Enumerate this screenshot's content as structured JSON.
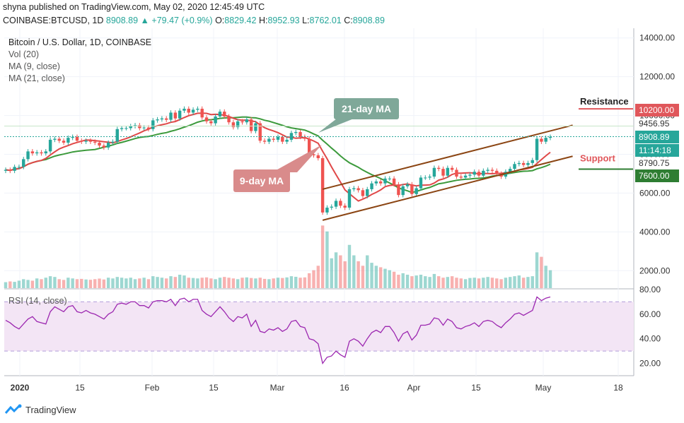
{
  "header": {
    "publisher": "shyna published on TradingView.com, May 02, 2020 12:45:49 UTC",
    "symbol": "COINBASE:BTCUSD, 1D",
    "last": "8908.89",
    "change": "+79.47 (+0.9%)",
    "open_label": "O:",
    "open": "8829.42",
    "high_label": "H:",
    "high": "8952.93",
    "low_label": "L:",
    "low": "8762.01",
    "close_label": "C:",
    "close": "8908.89"
  },
  "legend": {
    "title": "Bitcoin / U.S. Dollar, 1D, COINBASE",
    "vol": "Vol (20)",
    "ma9": "MA (9, close)",
    "ma21": "MA (21, close)"
  },
  "footer": {
    "brand": "TradingView"
  },
  "colors": {
    "up": "#26a69a",
    "down": "#ef5350",
    "ma9": "#e04848",
    "ma21": "#3c9a3c",
    "channel": "#8b4513",
    "rsi": "#9c27b0",
    "rsi_band": "#f3e5f5",
    "resistance": "#e0575b",
    "support": "#2e7d32"
  },
  "chart_data": [
    {
      "type": "candlestick",
      "title": "Bitcoin / U.S. Dollar, 1D, COINBASE",
      "x_ticks": [
        "2020",
        "15",
        "Feb",
        "15",
        "Mar",
        "16",
        "Apr",
        "15",
        "May",
        "18"
      ],
      "y_ticks": [
        "2000.00",
        "4000.00",
        "6000.00",
        "8000.00",
        "10000.00",
        "12000.00",
        "14000.00"
      ],
      "ylim": [
        1100,
        14500
      ],
      "close_series": [
        7200,
        7150,
        7350,
        7350,
        7750,
        8150,
        8050,
        8100,
        8050,
        8150,
        8750,
        8800,
        8700,
        8600,
        8850,
        8900,
        8700,
        8650,
        8700,
        8650,
        8600,
        8450,
        8350,
        8600,
        8650,
        9300,
        9350,
        9350,
        9450,
        9500,
        9350,
        9380,
        9300,
        9750,
        9800,
        9850,
        9780,
        10150,
        9850,
        10250,
        10350,
        10150,
        10300,
        10350,
        9900,
        9700,
        9600,
        9950,
        10200,
        9950,
        9650,
        9400,
        9700,
        9650,
        9800,
        9200,
        9600,
        8700,
        8650,
        8800,
        8750,
        8900,
        8650,
        8750,
        9100,
        9150,
        8900,
        8800,
        8000,
        7950,
        7800,
        5000,
        5250,
        5300,
        5600,
        5350,
        5250,
        6200,
        6250,
        6150,
        5850,
        6200,
        6500,
        6600,
        6500,
        6750,
        6750,
        6450,
        5900,
        6350,
        6450,
        5950,
        6250,
        6800,
        6800,
        6850,
        7300,
        7250,
        6900,
        7300,
        7200,
        6850,
        6800,
        6900,
        6950,
        7100,
        6900,
        7150,
        7200,
        7150,
        7000,
        6850,
        7100,
        7250,
        7500,
        7550,
        7450,
        7550,
        7700,
        8800,
        8650,
        8850,
        8900
      ],
      "ma9_label": "9-day MA",
      "ma21_label": "21-day MA",
      "price_labels": [
        {
          "text": "10200.00",
          "value": 10200,
          "style": "resistance"
        },
        {
          "text": "9456.95",
          "value": 9456.95,
          "style": "plain"
        },
        {
          "text": "8908.89",
          "value": 8908.89,
          "style": "last"
        },
        {
          "text": "11:14:18",
          "value": 8500,
          "style": "last"
        },
        {
          "text": "8790.75",
          "value": 8790.75,
          "style": "plain-low"
        },
        {
          "text": "7600.00",
          "value": 7600,
          "style": "support"
        }
      ],
      "annotations": {
        "resistance": "Resistance",
        "support": "Support"
      },
      "volume_series": [
        400,
        450,
        420,
        500,
        600,
        550,
        500,
        650,
        600,
        700,
        800,
        750,
        600,
        550,
        700,
        650,
        600,
        620,
        580,
        560,
        600,
        640,
        580,
        700,
        650,
        750,
        700,
        650,
        700,
        600,
        650,
        700,
        600,
        800,
        750,
        700,
        650,
        800,
        750,
        900,
        850,
        700,
        680,
        650,
        700,
        720,
        650,
        600,
        700,
        750,
        700,
        650,
        600,
        700,
        720,
        680,
        650,
        700,
        620,
        600,
        650,
        700,
        680,
        720,
        800,
        760,
        700,
        720,
        1000,
        1200,
        1500,
        4200,
        3800,
        2000,
        2400,
        2200,
        1800,
        2900,
        2200,
        1800,
        1500,
        2200,
        1700,
        1500,
        1400,
        1300,
        1200,
        1100,
        900,
        1000,
        900,
        800,
        850,
        900,
        800,
        750,
        950,
        800,
        700,
        750,
        800,
        700,
        650,
        600,
        680,
        700,
        650,
        700,
        750,
        700,
        650,
        600,
        700,
        750,
        800,
        850,
        700,
        750,
        800,
        2400,
        2100,
        1500,
        1200
      ]
    },
    {
      "type": "line",
      "title": "RSI (14, close)",
      "y_ticks": [
        "20.00",
        "40.00",
        "60.00",
        "80.00"
      ],
      "ylim": [
        10,
        80
      ],
      "band": [
        30,
        70
      ],
      "values": [
        55,
        53,
        50,
        48,
        52,
        56,
        58,
        54,
        53,
        52,
        62,
        66,
        64,
        62,
        66,
        67,
        62,
        61,
        63,
        61,
        60,
        58,
        56,
        60,
        62,
        68,
        69,
        68,
        70,
        70,
        67,
        67,
        65,
        70,
        71,
        71,
        70,
        72,
        67,
        72,
        73,
        70,
        72,
        72,
        63,
        60,
        58,
        62,
        66,
        62,
        57,
        54,
        58,
        57,
        60,
        50,
        55,
        46,
        45,
        48,
        47,
        49,
        46,
        48,
        54,
        55,
        50,
        49,
        40,
        39,
        36,
        20,
        25,
        26,
        30,
        27,
        25,
        38,
        40,
        38,
        34,
        40,
        45,
        47,
        45,
        50,
        50,
        45,
        38,
        44,
        46,
        39,
        43,
        51,
        51,
        52,
        57,
        56,
        51,
        56,
        54,
        49,
        48,
        50,
        51,
        53,
        50,
        54,
        55,
        54,
        51,
        49,
        53,
        56,
        60,
        61,
        59,
        61,
        63,
        74,
        71,
        73,
        74
      ]
    }
  ]
}
